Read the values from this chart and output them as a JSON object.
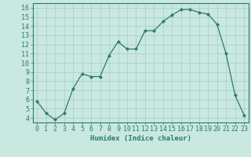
{
  "xlabel": "Humidex (Indice chaleur)",
  "ylabel": "",
  "x": [
    0,
    1,
    2,
    3,
    4,
    5,
    6,
    7,
    8,
    9,
    10,
    11,
    12,
    13,
    14,
    15,
    16,
    17,
    18,
    19,
    20,
    21,
    22,
    23
  ],
  "y": [
    5.8,
    4.5,
    3.8,
    4.5,
    7.2,
    8.8,
    8.5,
    8.5,
    10.8,
    12.3,
    11.5,
    11.5,
    13.5,
    13.5,
    14.5,
    15.2,
    15.8,
    15.8,
    15.5,
    15.3,
    14.2,
    11.0,
    6.5,
    4.3
  ],
  "line_color": "#2d7a6e",
  "marker": "D",
  "marker_size": 2.0,
  "bg_color": "#c8e8e0",
  "grid_color": "#a8ccc6",
  "axis_color": "#2d7a6e",
  "tick_color": "#2d7a6e",
  "xlim": [
    -0.5,
    23.5
  ],
  "ylim": [
    3.5,
    16.5
  ],
  "yticks": [
    4,
    5,
    6,
    7,
    8,
    9,
    10,
    11,
    12,
    13,
    14,
    15,
    16
  ],
  "xticks": [
    0,
    1,
    2,
    3,
    4,
    5,
    6,
    7,
    8,
    9,
    10,
    11,
    12,
    13,
    14,
    15,
    16,
    17,
    18,
    19,
    20,
    21,
    22,
    23
  ],
  "label_fontsize": 6.5,
  "tick_fontsize": 6.0
}
